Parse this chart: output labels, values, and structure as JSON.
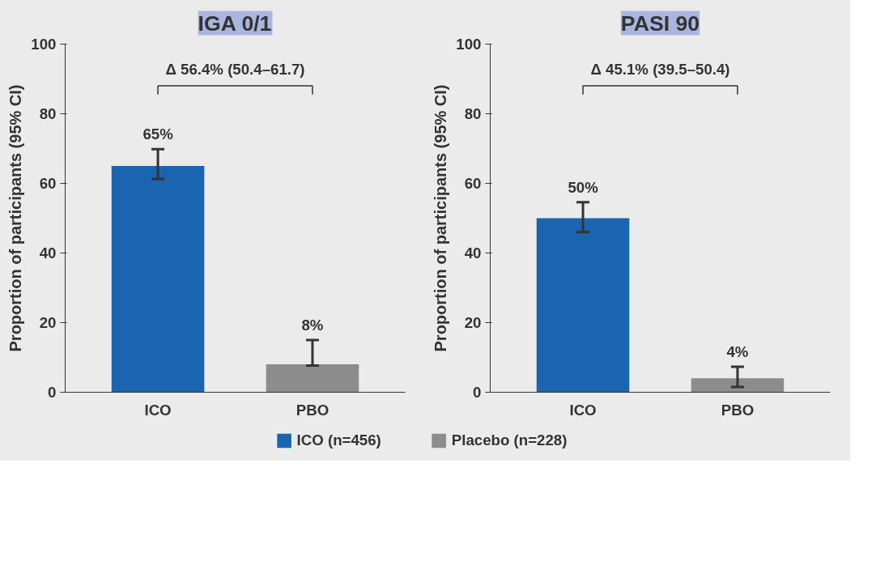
{
  "chart_data": [
    {
      "type": "bar",
      "title": "IGA 0/1",
      "ylabel": "Proportion of participants (95% CI)",
      "categories": [
        "ICO",
        "PBO"
      ],
      "series": [
        {
          "name": "ICO (n=456)",
          "color": "#1a64b0",
          "values": [
            65,
            null
          ],
          "errors": [
            [
              61.3,
              69.8
            ],
            null
          ],
          "value_labels": [
            "65%",
            null
          ]
        },
        {
          "name": "Placebo (n=228)",
          "color": "#8c8c8c",
          "values": [
            null,
            8
          ],
          "errors": [
            null,
            [
              7.7,
              15
            ]
          ],
          "value_labels": [
            null,
            "8%"
          ]
        }
      ],
      "ylim": [
        0,
        100
      ],
      "yticks": [
        0,
        20,
        40,
        60,
        80,
        100
      ],
      "grid": false,
      "legend": "bottom",
      "annotations": [
        "Δ 56.4% (50.4–61.7)"
      ]
    },
    {
      "type": "bar",
      "title": "PASI 90",
      "ylabel": "Proportion of participants (95% CI)",
      "categories": [
        "ICO",
        "PBO"
      ],
      "series": [
        {
          "color": "#1a64b0",
          "values": [
            50,
            null
          ],
          "errors": [
            [
              46,
              54.6
            ],
            null
          ],
          "value_labels": [
            "50%",
            null
          ]
        },
        {
          "color": "#8c8c8c",
          "values": [
            null,
            4
          ],
          "errors": [
            null,
            [
              1.5,
              7.3
            ]
          ],
          "value_labels": [
            null,
            "4%"
          ]
        }
      ],
      "ylim": [
        0,
        100
      ],
      "yticks": [
        0,
        20,
        40,
        60,
        80,
        100
      ],
      "grid": false,
      "annotations": [
        "Δ 45.1% (39.5–50.4)"
      ]
    }
  ]
}
